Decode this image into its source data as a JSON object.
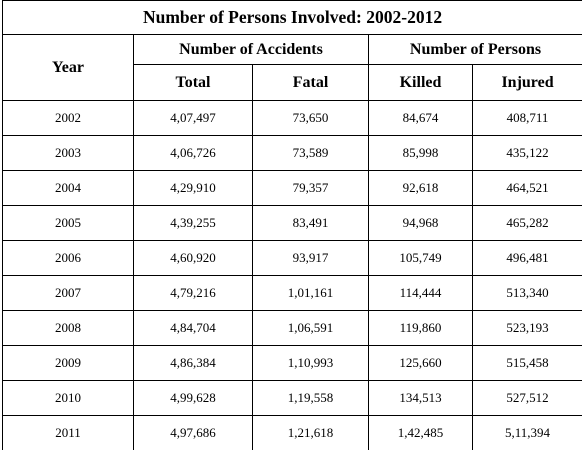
{
  "title": "Number of Persons Involved: 2002-2012",
  "headers": {
    "year": "Year",
    "accidents_group": "Number of Accidents",
    "persons_group": "Number of Persons",
    "total": "Total",
    "fatal": "Fatal",
    "killed": "Killed",
    "injured": "Injured"
  },
  "rows": [
    [
      "2002",
      "4,07,497",
      "73,650",
      "84,674",
      "408,711"
    ],
    [
      "2003",
      "4,06,726",
      "73,589",
      "85,998",
      "435,122"
    ],
    [
      "2004",
      "4,29,910",
      "79,357",
      "92,618",
      "464,521"
    ],
    [
      "2005",
      "4,39,255",
      "83,491",
      "94,968",
      "465,282"
    ],
    [
      "2006",
      "4,60,920",
      "93,917",
      "105,749",
      "496,481"
    ],
    [
      "2007",
      "4,79,216",
      "1,01,161",
      "114,444",
      "513,340"
    ],
    [
      "2008",
      "4,84,704",
      "1,06,591",
      "119,860",
      "523,193"
    ],
    [
      "2009",
      "4,86,384",
      "1,10,993",
      "125,660",
      "515,458"
    ],
    [
      "2010",
      "4,99,628",
      "1,19,558",
      "134,513",
      "527,512"
    ],
    [
      "2011",
      "4,97,686",
      "1,21,618",
      "1,42,485",
      "5,11,394"
    ]
  ]
}
